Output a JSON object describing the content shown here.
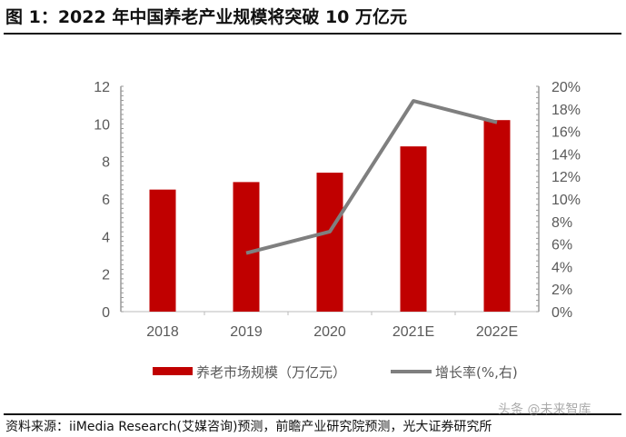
{
  "title": "图 1：2022 年中国养老产业规模将突破 10 万亿元",
  "source": "资料来源：iiMedia Research(艾媒咨询)预测，前瞻产业研究院预测，光大证券研究所",
  "watermark": "头条 @未来智库",
  "chart_data": {
    "type": "bar+line",
    "categories": [
      "2018",
      "2019",
      "2020",
      "2021E",
      "2022E"
    ],
    "series": [
      {
        "name": "养老市场规模（万亿元）",
        "type": "bar",
        "axis": "left",
        "color": "#C00000",
        "values": [
          6.5,
          6.9,
          7.4,
          8.8,
          10.2
        ]
      },
      {
        "name": "增长率(%,右)",
        "type": "line",
        "axis": "right",
        "color": "#7F7F7F",
        "values": [
          null,
          5.2,
          7.1,
          18.7,
          16.8
        ]
      }
    ],
    "y_left": {
      "range": [
        0,
        12
      ],
      "ticks": [
        "0",
        "2",
        "4",
        "6",
        "8",
        "10",
        "12"
      ]
    },
    "y_right": {
      "range": [
        0,
        20
      ],
      "ticks": [
        "0%",
        "2%",
        "4%",
        "6%",
        "8%",
        "10%",
        "12%",
        "14%",
        "16%",
        "18%",
        "20%"
      ]
    },
    "grid": false,
    "legend": "bottom"
  }
}
